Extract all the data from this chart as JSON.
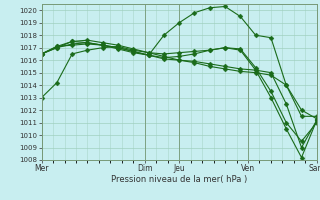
{
  "xlabel": "Pression niveau de la mer( hPa )",
  "bg_color": "#c8eef0",
  "grid_color": "#a0d0c0",
  "line_color": "#1a6b1a",
  "markersize": 2.5,
  "ylim": [
    1008,
    1020.5
  ],
  "yticks": [
    1008,
    1009,
    1010,
    1011,
    1012,
    1013,
    1014,
    1015,
    1016,
    1017,
    1018,
    1019,
    1020
  ],
  "day_labels": [
    "Mer",
    "",
    "Dim",
    "Jeu",
    "",
    "Ven",
    "",
    "Sam"
  ],
  "vline_positions": [
    0,
    9,
    12,
    18,
    24
  ],
  "vline_labels": [
    "Mer",
    "Dim",
    "Jeu",
    "Ven",
    "Sam"
  ],
  "series": [
    [
      1013.0,
      1014.2,
      1016.5,
      1016.8,
      1017.0,
      1017.1,
      1016.8,
      1016.6,
      1016.5,
      1016.6,
      1016.7,
      1016.8,
      1017.0,
      1016.8,
      1015.2,
      1013.0,
      1010.5,
      1008.2,
      1011.2
    ],
    [
      1016.5,
      1017.1,
      1017.2,
      1017.3,
      1017.2,
      1016.9,
      1016.6,
      1016.4,
      1018.0,
      1019.0,
      1019.8,
      1020.2,
      1020.3,
      1019.5,
      1018.0,
      1017.8,
      1014.0,
      1011.5,
      1011.5
    ],
    [
      1016.5,
      1017.0,
      1017.5,
      1017.6,
      1017.4,
      1017.2,
      1016.9,
      1016.6,
      1016.3,
      1016.0,
      1015.8,
      1015.5,
      1015.3,
      1015.1,
      1015.0,
      1014.8,
      1014.0,
      1012.0,
      1011.3
    ],
    [
      1016.5,
      1017.1,
      1017.5,
      1017.4,
      1017.2,
      1017.0,
      1016.7,
      1016.4,
      1016.2,
      1016.3,
      1016.5,
      1016.8,
      1017.0,
      1016.9,
      1015.4,
      1013.5,
      1011.0,
      1009.5,
      1011.0
    ],
    [
      1016.5,
      1017.0,
      1017.3,
      1017.4,
      1017.2,
      1017.0,
      1016.7,
      1016.4,
      1016.1,
      1016.0,
      1015.9,
      1015.7,
      1015.5,
      1015.3,
      1015.2,
      1015.0,
      1012.5,
      1009.0,
      1011.2
    ]
  ]
}
